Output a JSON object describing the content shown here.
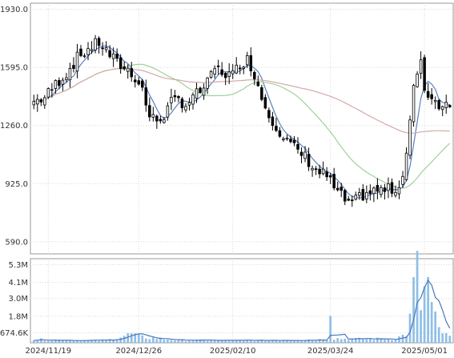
{
  "chart_data": {
    "type": "candlestick",
    "price_axis": {
      "ticks": [
        590.0,
        925.0,
        1260.0,
        1595.0,
        1930.0
      ],
      "tick_labels": [
        "590.0",
        "925.0",
        "1260.0",
        "1595.0",
        "1930.0"
      ],
      "range": [
        520,
        1965
      ]
    },
    "volume_axis": {
      "ticks": [
        674600,
        1800000,
        3000000,
        4100000,
        5300000
      ],
      "tick_labels": [
        "674.6K",
        "1.8M",
        "3.0M",
        "4.1M",
        "5.3M"
      ],
      "range": [
        0,
        5700000
      ]
    },
    "x_ticks": [
      {
        "label": "2024/11/19",
        "index": 4
      },
      {
        "label": "2024/12/26",
        "index": 29
      },
      {
        "label": "2025/02/10",
        "index": 55
      },
      {
        "label": "2025/03/24",
        "index": 82
      },
      {
        "label": "2025/05/01",
        "index": 108
      }
    ],
    "grid": true,
    "colors": {
      "ma_short": "#5b7fc4",
      "ma_mid": "#9fd19a",
      "ma_long": "#d4a9a9",
      "volume": "#8fbfe6",
      "volume_line": "#4a78b8",
      "candle_up_fill": "#ffffff",
      "candle_down_fill": "#000000",
      "candle_edge": "#000000"
    },
    "close_anchors": [
      [
        0,
        1400
      ],
      [
        3,
        1420
      ],
      [
        6,
        1500
      ],
      [
        9,
        1560
      ],
      [
        12,
        1650
      ],
      [
        15,
        1700
      ],
      [
        18,
        1740
      ],
      [
        20,
        1690
      ],
      [
        23,
        1620
      ],
      [
        26,
        1580
      ],
      [
        28,
        1540
      ],
      [
        30,
        1470
      ],
      [
        32,
        1310
      ],
      [
        34,
        1290
      ],
      [
        36,
        1320
      ],
      [
        38,
        1390
      ],
      [
        40,
        1410
      ],
      [
        42,
        1380
      ],
      [
        45,
        1440
      ],
      [
        48,
        1500
      ],
      [
        50,
        1590
      ],
      [
        53,
        1560
      ],
      [
        55,
        1550
      ],
      [
        57,
        1620
      ],
      [
        59,
        1640
      ],
      [
        61,
        1560
      ],
      [
        63,
        1420
      ],
      [
        65,
        1330
      ],
      [
        67,
        1260
      ],
      [
        69,
        1190
      ],
      [
        72,
        1130
      ],
      [
        75,
        1080
      ],
      [
        78,
        1000
      ],
      [
        81,
        970
      ],
      [
        83,
        900
      ],
      [
        86,
        830
      ],
      [
        88,
        800
      ],
      [
        90,
        850
      ],
      [
        92,
        870
      ],
      [
        95,
        885
      ],
      [
        98,
        890
      ],
      [
        101,
        900
      ],
      [
        103,
        1100
      ],
      [
        104,
        1300
      ],
      [
        105,
        1480
      ],
      [
        106,
        1540
      ],
      [
        107,
        1610
      ],
      [
        108,
        1470
      ],
      [
        110,
        1420
      ],
      [
        112,
        1380
      ],
      [
        115,
        1400
      ]
    ],
    "bar_count": 116,
    "volume_anchors": [
      [
        0,
        220000
      ],
      [
        10,
        180000
      ],
      [
        20,
        150000
      ],
      [
        27,
        600000
      ],
      [
        30,
        380000
      ],
      [
        40,
        180000
      ],
      [
        55,
        150000
      ],
      [
        63,
        160000
      ],
      [
        70,
        200000
      ],
      [
        81,
        220000
      ],
      [
        82,
        2500000
      ],
      [
        83,
        300000
      ],
      [
        90,
        250000
      ],
      [
        100,
        280000
      ],
      [
        103,
        600000
      ],
      [
        104,
        1600000
      ],
      [
        105,
        3800000
      ],
      [
        106,
        4800000
      ],
      [
        107,
        2500000
      ],
      [
        108,
        3400000
      ],
      [
        109,
        4200000
      ],
      [
        110,
        2300000
      ],
      [
        111,
        1600000
      ],
      [
        112,
        900000
      ],
      [
        114,
        500000
      ],
      [
        115,
        400000
      ]
    ]
  }
}
